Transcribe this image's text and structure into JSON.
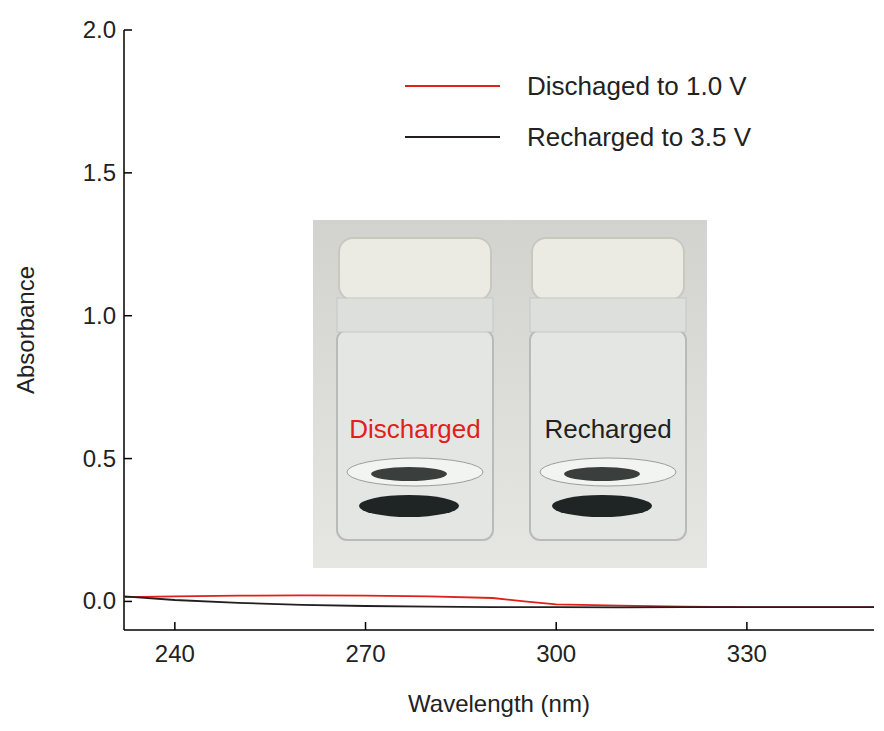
{
  "chart_data": {
    "type": "line",
    "x_label": "Wavelength (nm)",
    "y_label": "Absorbance",
    "xlim": [
      232,
      350
    ],
    "xticks": [
      240,
      270,
      300,
      330
    ],
    "ylim": [
      -0.1,
      2.0
    ],
    "yticks": [
      {
        "value": 0,
        "label": "0.0"
      },
      {
        "value": 0.5,
        "label": "0.5"
      },
      {
        "value": 1.0,
        "label": "1.0"
      },
      {
        "value": 1.5,
        "label": "1.5"
      },
      {
        "value": 2.0,
        "label": "2.0"
      }
    ],
    "legend": "upper right",
    "x": [
      232,
      240,
      250,
      260,
      270,
      280,
      290,
      295,
      300,
      310,
      320,
      330,
      340,
      350
    ],
    "series": [
      {
        "name": "Dischaged to 1.0 V",
        "color": "#e0201b",
        "values": [
          0.015,
          0.018,
          0.02,
          0.021,
          0.02,
          0.018,
          0.012,
          0.0,
          -0.01,
          -0.015,
          -0.018,
          -0.02,
          -0.02,
          -0.02
        ]
      },
      {
        "name": "Recharged to 3.5 V",
        "color": "#231f20",
        "values": [
          0.018,
          0.005,
          -0.005,
          -0.012,
          -0.016,
          -0.018,
          -0.02,
          -0.02,
          -0.02,
          -0.021,
          -0.02,
          -0.02,
          -0.02,
          -0.02
        ]
      }
    ],
    "annotations": [
      {
        "text": "Discharged",
        "color": "#e0201b"
      },
      {
        "text": "Recharged",
        "color": "#231f20"
      }
    ]
  }
}
